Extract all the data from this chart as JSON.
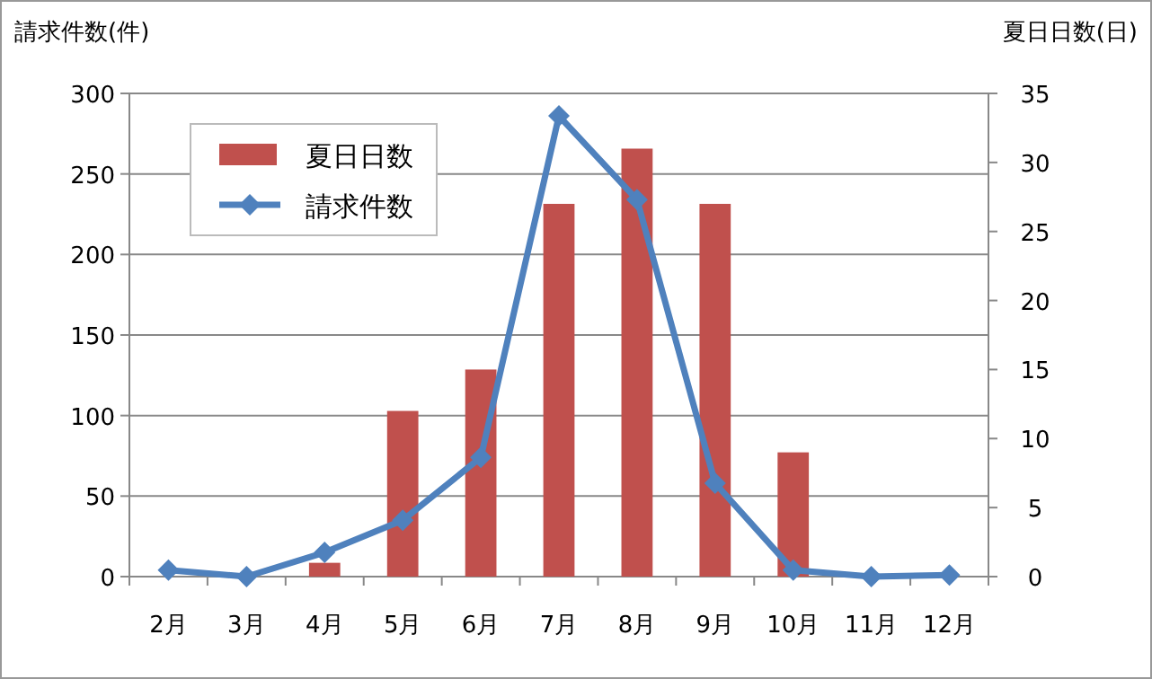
{
  "chart_data": {
    "type": "bar",
    "ylabel": "請求件数(件)",
    "y2label": "夏日日数(日)",
    "categories": [
      "2月",
      "3月",
      "4月",
      "5月",
      "6月",
      "7月",
      "8月",
      "9月",
      "10月",
      "11月",
      "12月"
    ],
    "series": [
      {
        "name": "夏日日数",
        "axis": "y2",
        "color": "#c0504d",
        "values": [
          0,
          0,
          1,
          12,
          15,
          27,
          31,
          27,
          9,
          0,
          0
        ]
      },
      {
        "name": "請求件数",
        "type": "line",
        "color": "#4f81bd",
        "marker": "diamond",
        "values": [
          4,
          0,
          15,
          35,
          74,
          286,
          234,
          58,
          4,
          0,
          1
        ]
      }
    ],
    "ylim": [
      0,
      300
    ],
    "yticks": [
      0,
      50,
      100,
      150,
      200,
      250,
      300
    ],
    "y2lim": [
      0,
      35
    ],
    "y2ticks": [
      0,
      5,
      10,
      15,
      20,
      25,
      30,
      35
    ],
    "grid": "y",
    "legend": "top left"
  }
}
